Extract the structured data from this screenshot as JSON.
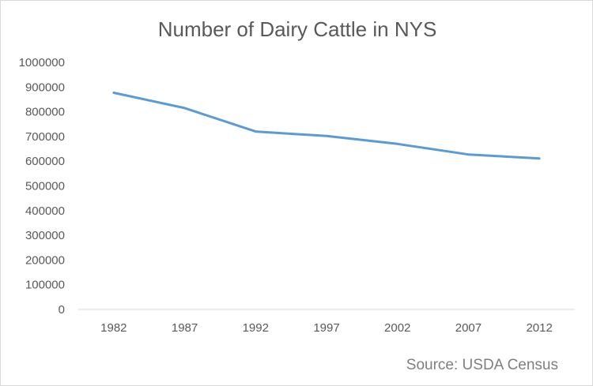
{
  "chart_data": {
    "type": "line",
    "title": "Number of Dairy Cattle in NYS",
    "xlabel": "",
    "ylabel": "",
    "categories": [
      "1982",
      "1987",
      "1992",
      "1997",
      "2002",
      "2007",
      "2012"
    ],
    "series": [
      {
        "values": [
          877000,
          815000,
          720000,
          702000,
          670000,
          627000,
          611000
        ],
        "color": "#5b9bd5"
      }
    ],
    "ylim": [
      0,
      1000000
    ],
    "y_ticks": [
      "0",
      "100000",
      "200000",
      "300000",
      "400000",
      "500000",
      "600000",
      "700000",
      "800000",
      "900000",
      "1000000"
    ],
    "grid": false,
    "legend": "none",
    "annotation": "Source: USDA Census",
    "axis_color": "#d9d9d9",
    "text_color": "#595959"
  }
}
